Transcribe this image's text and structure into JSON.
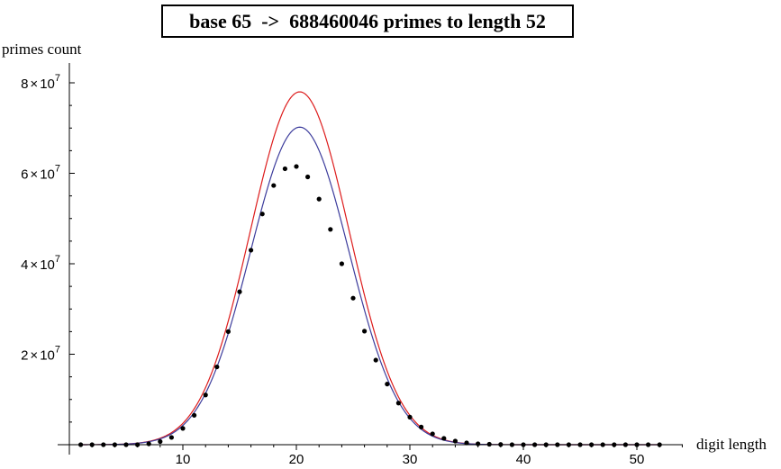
{
  "chart_data": {
    "type": "scatter",
    "title": "base 65  ->  688460046 primes to length 52",
    "xlabel": "digit length",
    "ylabel": "primes count",
    "xlim": [
      0,
      54
    ],
    "ylim": [
      0,
      80000000
    ],
    "grid": false,
    "x_ticks": [
      {
        "value": 10,
        "label": "10"
      },
      {
        "value": 20,
        "label": "20"
      },
      {
        "value": 30,
        "label": "30"
      },
      {
        "value": 40,
        "label": "40"
      },
      {
        "value": 50,
        "label": "50"
      }
    ],
    "y_ticks": [
      {
        "value": 20000000,
        "mantissa": "2",
        "base": "10",
        "exp": "7"
      },
      {
        "value": 40000000,
        "mantissa": "4",
        "base": "10",
        "exp": "7"
      },
      {
        "value": 60000000,
        "mantissa": "6",
        "base": "10",
        "exp": "7"
      },
      {
        "value": 80000000,
        "mantissa": "8",
        "base": "10",
        "exp": "7"
      }
    ],
    "points": {
      "color": "#000000",
      "x": [
        1,
        2,
        3,
        4,
        5,
        6,
        7,
        8,
        9,
        10,
        11,
        12,
        13,
        14,
        15,
        16,
        17,
        18,
        19,
        20,
        21,
        22,
        23,
        24,
        25,
        26,
        27,
        28,
        29,
        30,
        31,
        32,
        33,
        34,
        35,
        36,
        37,
        38,
        39,
        40,
        41,
        42,
        43,
        44,
        45,
        46,
        47,
        48,
        49,
        50,
        51,
        52
      ],
      "y": [
        0,
        0,
        0,
        0,
        0,
        0,
        200000,
        700000,
        1600000,
        3600000,
        6500000,
        11000000,
        17200000,
        25000000,
        33800000,
        43000000,
        51000000,
        57300000,
        61000000,
        61500000,
        59200000,
        54300000,
        47600000,
        40000000,
        32400000,
        25100000,
        18700000,
        13400000,
        9200000,
        6100000,
        3900000,
        2400000,
        1400000,
        800000,
        400000,
        200000,
        100000,
        50000,
        0,
        0,
        0,
        0,
        0,
        0,
        0,
        0,
        0,
        0,
        0,
        0,
        0,
        0
      ]
    },
    "curves": [
      {
        "color": "#dd1c1c",
        "peak": 78000000,
        "peak_x": 20.3,
        "sigma": 4.35
      },
      {
        "color": "#3c3c9c",
        "peak": 70200000,
        "peak_x": 20.3,
        "sigma": 4.35
      }
    ]
  }
}
